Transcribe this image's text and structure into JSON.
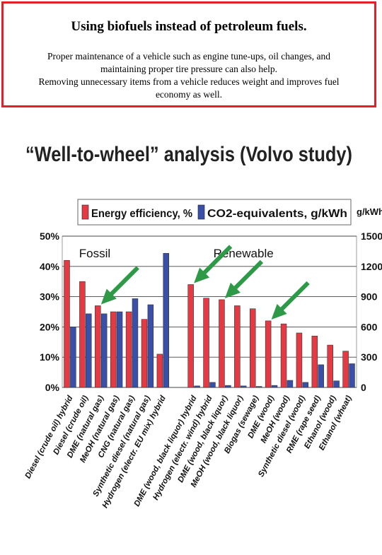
{
  "textbox": {
    "heading": "Using biofuels instead of petroleum fuels.",
    "line1": "Proper maintenance of a vehicle such as engine tune-ups, oil changes, and",
    "line2": "maintaining proper tire pressure can also help.",
    "line3": "Removing unnecessary items from a vehicle reduces weight and improves fuel",
    "line4": "economy as well."
  },
  "colors": {
    "energy_bar": "#e43a44",
    "co2_bar": "#3a50a8",
    "arrow": "#2e9a48",
    "border": "#e0202a"
  },
  "chart_data": {
    "type": "bar",
    "title": "“Well-to-wheel” analysis (Volvo study)",
    "right_axis_unit": "g/kWh",
    "categories": [
      "Diesel (crude oil) hybrid",
      "Diesel (crude oil)",
      "DME (natural gas)",
      "MeOH (natural gas)",
      "CNG (natural gas)",
      "Synthetic diesel (natural gas)",
      "Hydrogen (electr. EU mix) hybrid",
      "DME (wood, black liquor) hybrid",
      "Hydrogen (electr. wind) hybrid",
      "DME (wood, black liquor)",
      "MeOH (wood, black liquor)",
      "Biogas (sewage)",
      "DME (wood)",
      "MeOH (wood)",
      "Synthetic diesel (wood)",
      "RME (rape seed)",
      "Ethanol (wood)",
      "Ethanol (wheat)"
    ],
    "groups": [
      {
        "label": "Fossil",
        "count": 7
      },
      {
        "label": "Renewable",
        "count": 11
      }
    ],
    "series": [
      {
        "name": "Energy efficiency, %",
        "axis": "left",
        "values": [
          42,
          35,
          27,
          25,
          25,
          22.5,
          11,
          34,
          29.5,
          29,
          27,
          26,
          22,
          21,
          18,
          17,
          14,
          12
        ]
      },
      {
        "name": "CO2-equivalents, g/kWh",
        "axis": "right",
        "values": [
          600,
          730,
          730,
          750,
          880,
          820,
          1330,
          15,
          50,
          20,
          15,
          10,
          20,
          70,
          50,
          225,
          65,
          235
        ]
      }
    ],
    "left_axis": {
      "ylim": [
        0,
        50
      ],
      "ticks": [
        "0%",
        "10%",
        "20%",
        "30%",
        "40%",
        "50%"
      ]
    },
    "right_axis": {
      "ylim": [
        0,
        1500
      ],
      "ticks": [
        "0",
        "300",
        "600",
        "900",
        "1200",
        "1500"
      ]
    },
    "grid": true,
    "legend": "top"
  }
}
